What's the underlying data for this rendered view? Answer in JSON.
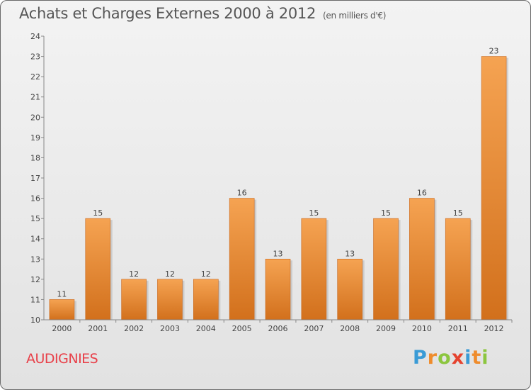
{
  "title": "Achats et Charges Externes 2000 à 2012",
  "unit_note": "(en milliers d'€)",
  "location": "AUDIGNIES",
  "brand": {
    "text": "Proxiti",
    "letter_colors": [
      "#3a9bd6",
      "#ef8c2c",
      "#8cc63f",
      "#e5432f",
      "#3a9bd6",
      "#ef8c2c",
      "#8cc63f"
    ]
  },
  "colors": {
    "bar_top": "#f5a352",
    "bar_bottom": "#d2701c",
    "title": "#555555",
    "location": "#e8414a"
  },
  "chart_data": {
    "type": "bar",
    "title": "Achats et Charges Externes 2000 à 2012",
    "categories": [
      "2000",
      "2001",
      "2002",
      "2003",
      "2004",
      "2005",
      "2006",
      "2007",
      "2008",
      "2009",
      "2010",
      "2011",
      "2012"
    ],
    "values": [
      11,
      15,
      12,
      12,
      12,
      16,
      13,
      15,
      13,
      15,
      16,
      15,
      23
    ],
    "ylim": [
      10,
      24
    ],
    "yticks": [
      10,
      11,
      12,
      13,
      14,
      15,
      16,
      17,
      18,
      19,
      20,
      21,
      22,
      23,
      24
    ],
    "grid": false,
    "legend": "none"
  }
}
